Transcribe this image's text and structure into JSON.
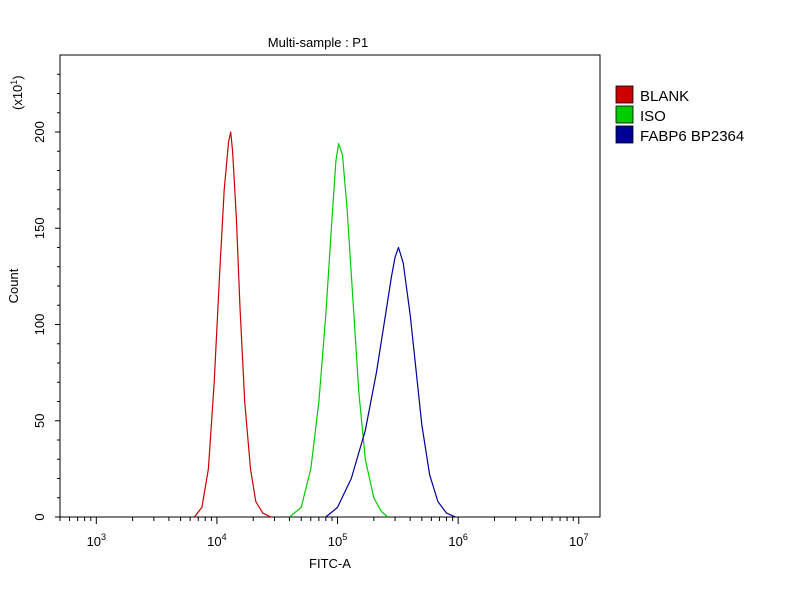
{
  "chart_data": {
    "type": "line",
    "title": "Multi-sample : P1",
    "xlabel": "FITC-A",
    "ylabel": "Count",
    "y_multiplier_label": "(x10",
    "y_multiplier_exp": "1",
    "x_scale": "log",
    "xlim": [
      500,
      15000000
    ],
    "ylim": [
      0,
      240
    ],
    "x_ticks": [
      {
        "base": "10",
        "exp": "3",
        "value": 1000
      },
      {
        "base": "10",
        "exp": "4",
        "value": 10000
      },
      {
        "base": "10",
        "exp": "5",
        "value": 100000
      },
      {
        "base": "10",
        "exp": "6",
        "value": 1000000
      },
      {
        "base": "10",
        "exp": "7",
        "value": 10000000
      }
    ],
    "y_ticks": [
      "0",
      "50",
      "100",
      "150",
      "200"
    ],
    "legend_position": "right",
    "grid": false,
    "series": [
      {
        "name": "BLANK",
        "color": "#cc0000",
        "x": [
          6500,
          7500,
          8500,
          9500,
          10500,
          11500,
          12500,
          13000,
          13500,
          14500,
          15500,
          17000,
          19000,
          21000,
          24000,
          28000
        ],
        "y": [
          0,
          5,
          25,
          70,
          125,
          170,
          195,
          200,
          190,
          155,
          110,
          60,
          25,
          8,
          2,
          0
        ]
      },
      {
        "name": "ISO",
        "color": "#00cc00",
        "x": [
          40000,
          50000,
          60000,
          70000,
          80000,
          90000,
          97000,
          102000,
          110000,
          120000,
          135000,
          150000,
          170000,
          200000,
          230000,
          260000
        ],
        "y": [
          0,
          5,
          25,
          60,
          105,
          155,
          185,
          194,
          188,
          160,
          110,
          65,
          30,
          10,
          3,
          0
        ]
      },
      {
        "name": "FABP6 BP2364",
        "color": "#000099",
        "x": [
          80000,
          100000,
          130000,
          170000,
          210000,
          250000,
          280000,
          300000,
          320000,
          350000,
          400000,
          450000,
          500000,
          580000,
          680000,
          800000,
          950000
        ],
        "y": [
          0,
          5,
          20,
          45,
          75,
          105,
          125,
          135,
          140,
          132,
          105,
          75,
          48,
          22,
          8,
          2,
          0
        ]
      }
    ]
  }
}
